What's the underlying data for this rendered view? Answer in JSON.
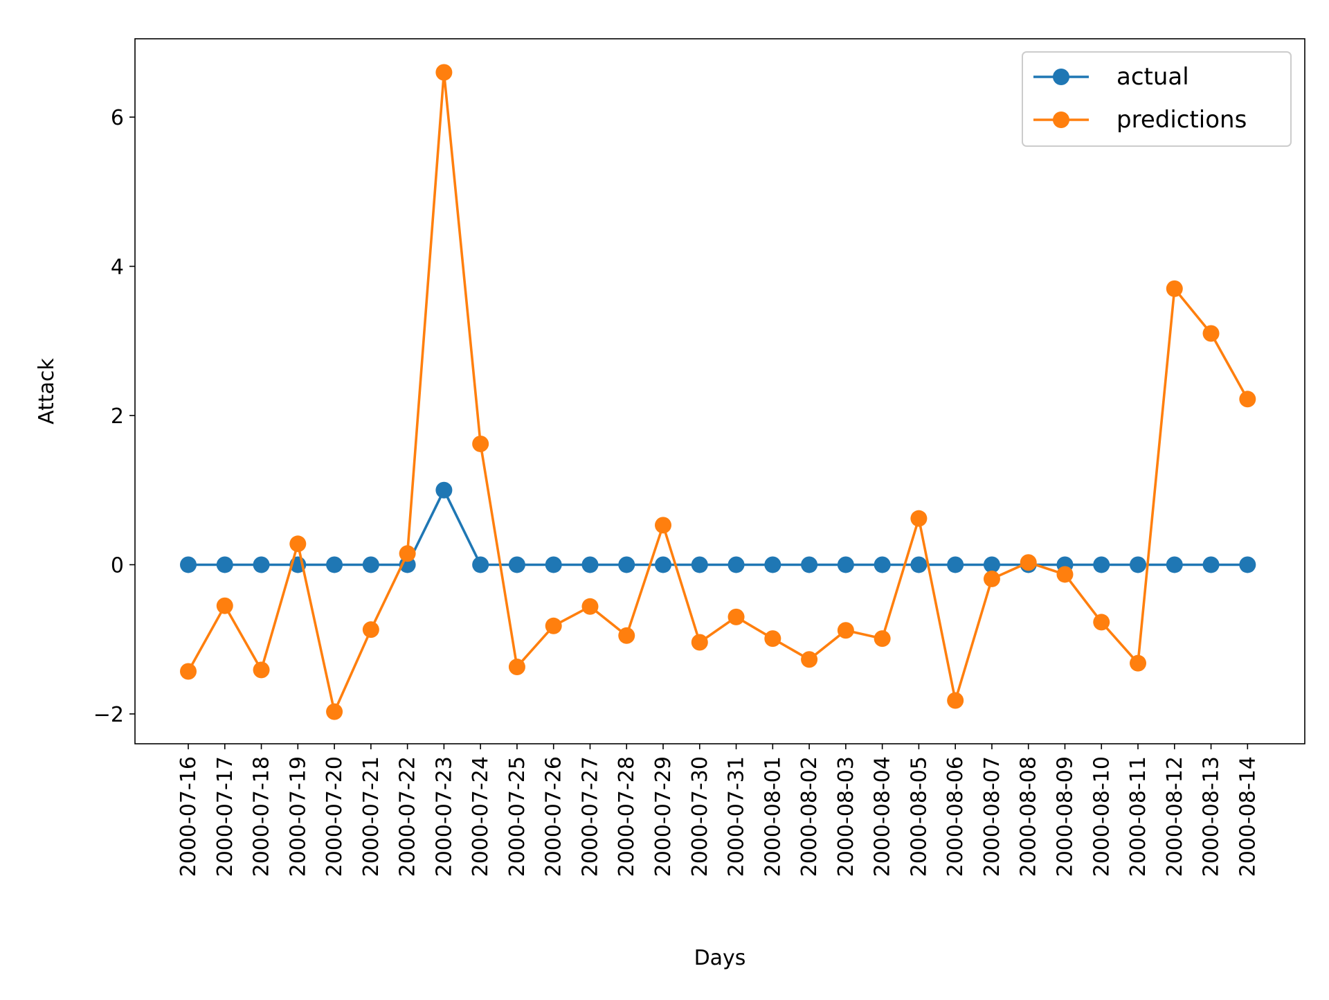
{
  "chart_data": {
    "type": "line",
    "title": "",
    "xlabel": "Days",
    "ylabel": "Attack",
    "categories": [
      "2000-07-16",
      "2000-07-17",
      "2000-07-18",
      "2000-07-19",
      "2000-07-20",
      "2000-07-21",
      "2000-07-22",
      "2000-07-23",
      "2000-07-24",
      "2000-07-25",
      "2000-07-26",
      "2000-07-27",
      "2000-07-28",
      "2000-07-29",
      "2000-07-30",
      "2000-07-31",
      "2000-08-01",
      "2000-08-02",
      "2000-08-03",
      "2000-08-04",
      "2000-08-05",
      "2000-08-06",
      "2000-08-07",
      "2000-08-08",
      "2000-08-09",
      "2000-08-10",
      "2000-08-11",
      "2000-08-12",
      "2000-08-13",
      "2000-08-14"
    ],
    "ylim": [
      -2.4,
      7.05
    ],
    "yticks": [
      -2,
      0,
      2,
      4,
      6
    ],
    "ytick_labels": [
      "−2",
      "0",
      "2",
      "4",
      "6"
    ],
    "grid": false,
    "legend_position": "top-right",
    "series": [
      {
        "name": "actual",
        "color": "#1f77b4",
        "marker": "circle",
        "values": [
          0,
          0,
          0,
          0,
          0,
          0,
          0,
          1,
          0,
          0,
          0,
          0,
          0,
          0,
          0,
          0,
          0,
          0,
          0,
          0,
          0,
          0,
          0,
          0,
          0,
          0,
          0,
          0,
          0,
          0
        ]
      },
      {
        "name": "predictions",
        "color": "#ff7f0e",
        "marker": "circle",
        "values": [
          -1.43,
          -0.55,
          -1.41,
          0.28,
          -1.97,
          -0.87,
          0.15,
          6.6,
          1.62,
          -1.37,
          -0.82,
          -0.56,
          -0.95,
          0.53,
          -1.04,
          -0.7,
          -0.99,
          -1.27,
          -0.88,
          -0.99,
          0.62,
          -1.82,
          -0.19,
          0.03,
          -0.13,
          -0.77,
          -1.32,
          3.7,
          3.1,
          2.22
        ]
      }
    ]
  }
}
